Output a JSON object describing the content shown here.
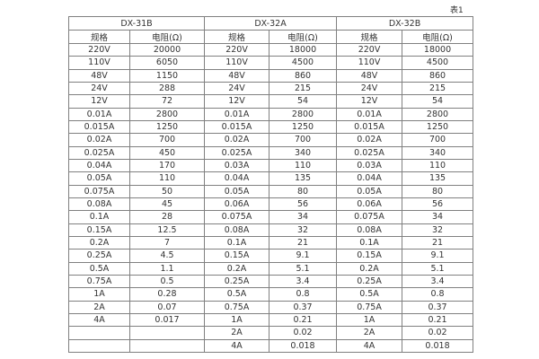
{
  "page": {
    "caption": "表1"
  },
  "colors": {
    "background": "#ffffff",
    "border": "#808080",
    "text": "#333333"
  },
  "table": {
    "group_headers": [
      "DX-31B",
      "DX-32A",
      "DX-32B"
    ],
    "col_headers": [
      "规格",
      "电阻(Ω)",
      "规格",
      "电阻(Ω)",
      "规格",
      "电阻(Ω)"
    ],
    "rows": [
      [
        "220V",
        "20000",
        "220V",
        "18000",
        "220V",
        "18000"
      ],
      [
        "110V",
        "6050",
        "110V",
        "4500",
        "110V",
        "4500"
      ],
      [
        "48V",
        "1150",
        "48V",
        "860",
        "48V",
        "860"
      ],
      [
        "24V",
        "288",
        "24V",
        "215",
        "24V",
        "215"
      ],
      [
        "12V",
        "72",
        "12V",
        "54",
        "12V",
        "54"
      ],
      [
        "0.01A",
        "2800",
        "0.01A",
        "2800",
        "0.01A",
        "2800"
      ],
      [
        "0.015A",
        "1250",
        "0.015A",
        "1250",
        "0.015A",
        "1250"
      ],
      [
        "0.02A",
        "700",
        "0.02A",
        "700",
        "0.02A",
        "700"
      ],
      [
        "0.025A",
        "450",
        "0.025A",
        "340",
        "0.025A",
        "340"
      ],
      [
        "0.04A",
        "170",
        "0.03A",
        "110",
        "0.03A",
        "110"
      ],
      [
        "0.05A",
        "110",
        "0.04A",
        "135",
        "0.04A",
        "135"
      ],
      [
        "0.075A",
        "50",
        "0.05A",
        "80",
        "0.05A",
        "80"
      ],
      [
        "0.08A",
        "45",
        "0.06A",
        "56",
        "0.06A",
        "56"
      ],
      [
        "0.1A",
        "28",
        "0.075A",
        "34",
        "0.075A",
        "34"
      ],
      [
        "0.15A",
        "12.5",
        "0.08A",
        "32",
        "0.08A",
        "32"
      ],
      [
        "0.2A",
        "7",
        "0.1A",
        "21",
        "0.1A",
        "21"
      ],
      [
        "0.25A",
        "4.5",
        "0.15A",
        "9.1",
        "0.15A",
        "9.1"
      ],
      [
        "0.5A",
        "1.1",
        "0.2A",
        "5.1",
        "0.2A",
        "5.1"
      ],
      [
        "0.75A",
        "0.5",
        "0.25A",
        "3.4",
        "0.25A",
        "3.4"
      ],
      [
        "1A",
        "0.28",
        "0.5A",
        "0.8",
        "0.5A",
        "0.8"
      ],
      [
        "2A",
        "0.07",
        "0.75A",
        "0.37",
        "0.75A",
        "0.37"
      ],
      [
        "4A",
        "0.017",
        "1A",
        "0.21",
        "1A",
        "0.21"
      ],
      [
        "",
        "",
        "2A",
        "0.02",
        "2A",
        "0.02"
      ],
      [
        "",
        "",
        "4A",
        "0.018",
        "4A",
        "0.018"
      ]
    ]
  }
}
